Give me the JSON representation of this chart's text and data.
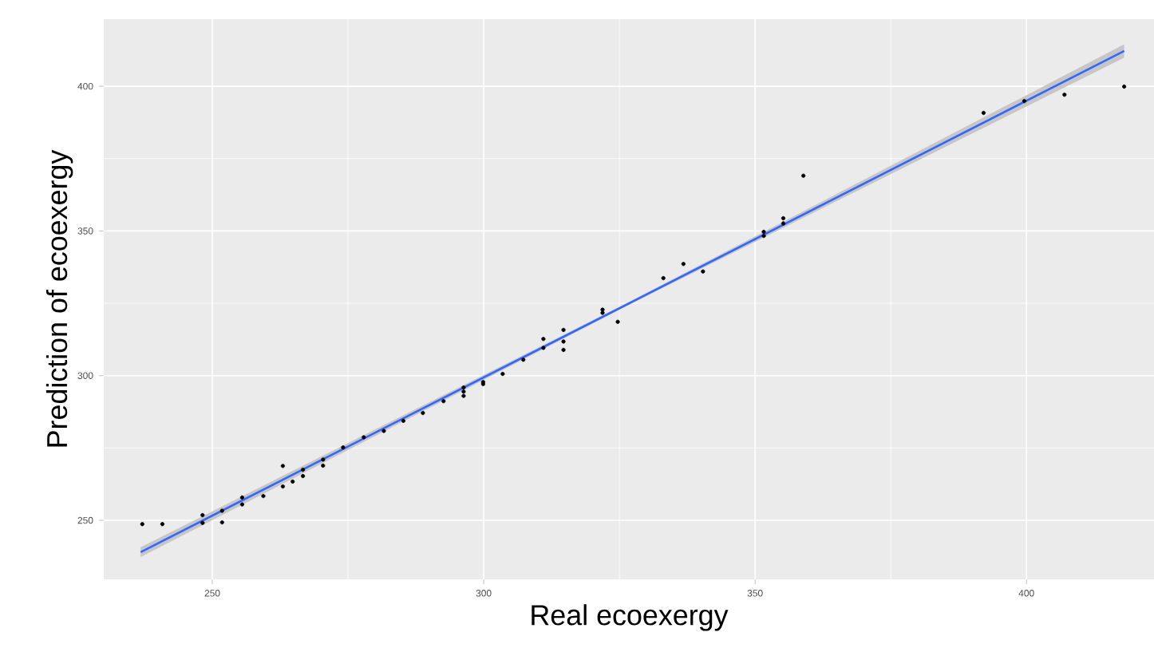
{
  "chart_data": {
    "type": "scatter",
    "xlabel": "Real ecoexergy",
    "ylabel": "Prediction of ecoexergy",
    "xlim": [
      230,
      423.5
    ],
    "ylim": [
      229.6,
      423.2
    ],
    "xticks": [
      250,
      300,
      350,
      400
    ],
    "yticks": [
      250,
      300,
      350,
      400
    ],
    "grid": true,
    "series": [
      {
        "color": "#000000",
        "marker": "circle",
        "x": [
          237.1,
          240.8,
          248.2,
          248.2,
          251.8,
          251.8,
          255.5,
          255.5,
          259.4,
          263.0,
          263.0,
          264.8,
          266.7,
          266.7,
          270.4,
          270.4,
          274.1,
          277.9,
          281.6,
          285.2,
          288.8,
          292.6,
          296.3,
          296.3,
          296.3,
          299.9,
          299.9,
          303.5,
          307.3,
          311.0,
          311.0,
          314.7,
          314.7,
          314.7,
          321.9,
          321.9,
          324.7,
          333.1,
          336.8,
          340.4,
          351.6,
          351.6,
          355.2,
          355.2,
          358.9,
          392.1,
          399.6,
          407.0,
          418.0
        ],
        "values": [
          248.7,
          248.7,
          251.8,
          249.1,
          253.3,
          249.3,
          257.9,
          255.5,
          258.4,
          268.8,
          261.7,
          263.4,
          267.5,
          265.3,
          271.0,
          268.9,
          275.2,
          278.7,
          280.9,
          284.4,
          287.1,
          291.2,
          295.9,
          294.5,
          293.0,
          297.8,
          297.1,
          300.6,
          305.5,
          312.7,
          309.6,
          315.8,
          311.8,
          308.9,
          322.8,
          321.7,
          318.6,
          333.7,
          338.6,
          336.0,
          349.7,
          348.3,
          354.4,
          352.6,
          369.1,
          390.8,
          394.9,
          397.1,
          399.9
        ]
      },
      {
        "type": "line",
        "color": "#3366ff",
        "x": [
          236.8,
          327,
          418
        ],
        "values": [
          239,
          325.2,
          412.2
        ],
        "lower": [
          237.3,
          324.7,
          409.9
        ],
        "upper": [
          240.7,
          325.7,
          414.5
        ]
      }
    ]
  }
}
